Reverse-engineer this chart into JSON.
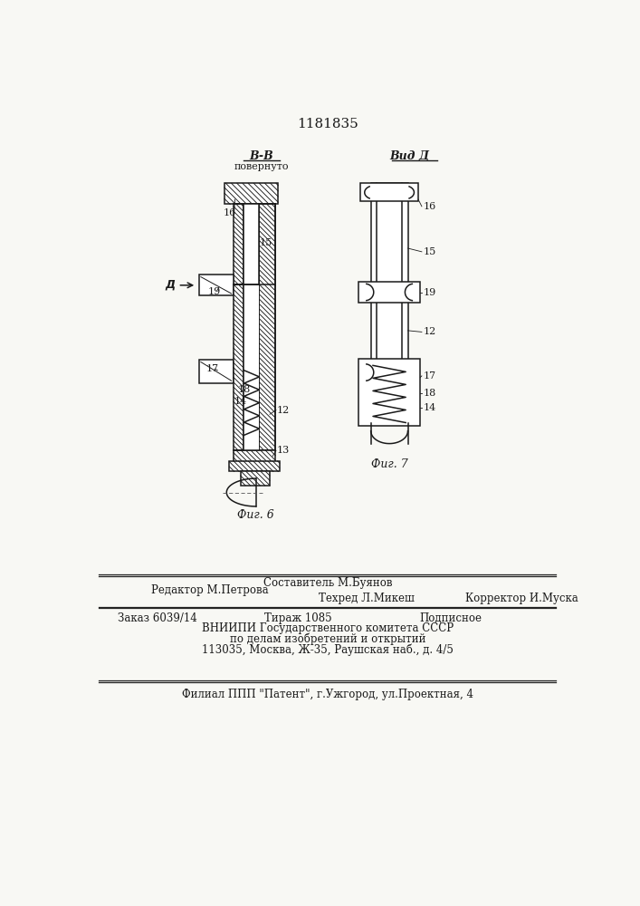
{
  "title": "1181835",
  "fig6_label": "Фиг. 6",
  "fig7_label": "Фиг. 7",
  "view_bb_label": "B-B",
  "view_bb_sub": "повернуто",
  "view_a_label": "Вид Д",
  "editor_line": "Редактор М.Петрова",
  "composer_line": "Составитель М.Буянов",
  "tech_line": "Техред Л.Микеш",
  "corrector_line": "Корректор И.Муска",
  "order_line": "Заказ 6039/14",
  "tirazh_line": "Тираж 1085",
  "podpisnoe_line": "Подписное",
  "vniiipi_line1": "ВНИИПИ Государственного комитета СССР",
  "vniiipi_line2": "по делам изобретений и открытий",
  "vniiipi_line3": "113035, Москва, Ж-35, Раушская наб., д. 4/5",
  "filial_line": "Филиал ППП \"Патент\", г.Ужгород, ул.Проектная, 4",
  "bg_color": "#f8f8f4",
  "line_color": "#1a1a1a"
}
